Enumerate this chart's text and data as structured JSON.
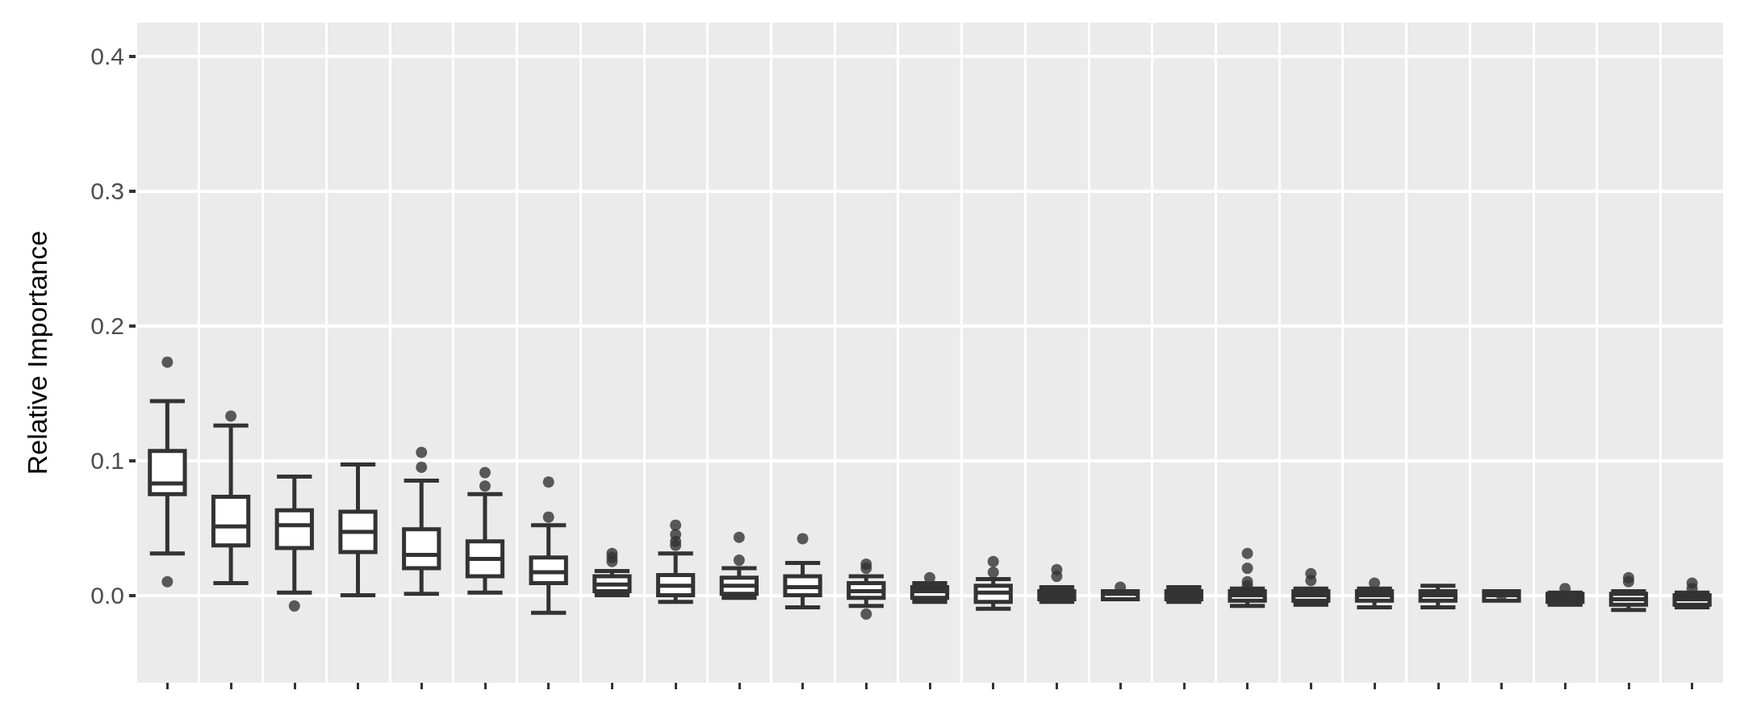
{
  "chart_data": {
    "type": "box",
    "ylabel": "Relative Importance",
    "categories": [
      null,
      null,
      null,
      null,
      null,
      null,
      null,
      null,
      null,
      null,
      null,
      null,
      null,
      null,
      null,
      null,
      null,
      null,
      null,
      null,
      null,
      null,
      null,
      null,
      null
    ],
    "ylim": [
      -0.065,
      0.425
    ],
    "yticks": [
      {
        "value": 0,
        "label": "0.0"
      },
      {
        "value": 0.1,
        "label": "0.1"
      },
      {
        "value": 0.2,
        "label": "0.2"
      },
      {
        "value": 0.3,
        "label": "0.3"
      },
      {
        "value": 0.4,
        "label": "0.4"
      }
    ],
    "grid": true,
    "tick_labels": "y",
    "color": "#333333",
    "boxes": [
      {
        "low": 0.031,
        "q1": 0.075,
        "median": 0.083,
        "q3": 0.107,
        "high": 0.144,
        "outliers": [
          0.173,
          0.01
        ]
      },
      {
        "low": 0.009,
        "q1": 0.037,
        "median": 0.051,
        "q3": 0.073,
        "high": 0.126,
        "outliers": [
          0.133
        ]
      },
      {
        "low": 0.002,
        "q1": 0.035,
        "median": 0.052,
        "q3": 0.063,
        "high": 0.088,
        "outliers": [
          -0.008
        ]
      },
      {
        "low": 0.0,
        "q1": 0.032,
        "median": 0.047,
        "q3": 0.062,
        "high": 0.097
      },
      {
        "low": 0.001,
        "q1": 0.02,
        "median": 0.03,
        "q3": 0.049,
        "high": 0.085,
        "outliers": [
          0.106,
          0.095
        ]
      },
      {
        "low": 0.002,
        "q1": 0.014,
        "median": 0.027,
        "q3": 0.04,
        "high": 0.075,
        "outliers": [
          0.091,
          0.081
        ]
      },
      {
        "low": -0.013,
        "q1": 0.009,
        "median": 0.017,
        "q3": 0.028,
        "high": 0.052,
        "outliers": [
          0.084,
          0.058
        ]
      },
      {
        "low": 0.0,
        "q1": 0.003,
        "median": 0.008,
        "q3": 0.014,
        "high": 0.018,
        "outliers": [
          0.031,
          0.028,
          0.025
        ]
      },
      {
        "low": -0.005,
        "q1": 0.0,
        "median": 0.007,
        "q3": 0.015,
        "high": 0.031,
        "outliers": [
          0.052,
          0.045,
          0.04,
          0.037
        ]
      },
      {
        "low": -0.002,
        "q1": 0.001,
        "median": 0.007,
        "q3": 0.013,
        "high": 0.02,
        "outliers": [
          0.043,
          0.026
        ]
      },
      {
        "low": -0.009,
        "q1": 0.0,
        "median": 0.006,
        "q3": 0.014,
        "high": 0.024,
        "outliers": [
          0.042
        ]
      },
      {
        "low": -0.008,
        "q1": -0.002,
        "median": 0.003,
        "q3": 0.009,
        "high": 0.014,
        "outliers": [
          0.023,
          0.02,
          -0.014
        ]
      },
      {
        "low": -0.005,
        "q1": -0.002,
        "median": 0.003,
        "q3": 0.006,
        "high": 0.009,
        "outliers": [
          0.013
        ]
      },
      {
        "low": -0.01,
        "q1": -0.005,
        "median": 0.002,
        "q3": 0.007,
        "high": 0.012,
        "outliers": [
          0.025,
          0.017
        ]
      },
      {
        "low": -0.005,
        "q1": -0.003,
        "median": 0.0,
        "q3": 0.003,
        "high": 0.006,
        "outliers": [
          0.019,
          0.014
        ]
      },
      {
        "low": -0.003,
        "q1": -0.003,
        "median": 0.001,
        "q3": 0.003,
        "high": 0.003,
        "outliers": [
          0.006
        ]
      },
      {
        "low": -0.005,
        "q1": -0.003,
        "median": 0.0,
        "q3": 0.003,
        "high": 0.006
      },
      {
        "low": -0.008,
        "q1": -0.004,
        "median": 0.0,
        "q3": 0.003,
        "high": 0.005,
        "outliers": [
          0.031,
          0.02,
          0.01,
          0.007
        ]
      },
      {
        "low": -0.007,
        "q1": -0.004,
        "median": 0.0,
        "q3": 0.003,
        "high": 0.005,
        "outliers": [
          0.016,
          0.011
        ]
      },
      {
        "low": -0.009,
        "q1": -0.004,
        "median": 0.0,
        "q3": 0.003,
        "high": 0.005,
        "outliers": [
          0.009
        ]
      },
      {
        "low": -0.009,
        "q1": -0.004,
        "median": 0.0,
        "q3": 0.003,
        "high": 0.007
      },
      {
        "low": -0.004,
        "q1": -0.004,
        "median": 0.0,
        "q3": 0.003,
        "high": 0.003,
        "outliers": [
          0.0
        ]
      },
      {
        "low": -0.007,
        "q1": -0.005,
        "median": -0.002,
        "q3": 0.001,
        "high": 0.002,
        "outliers": [
          0.005
        ]
      },
      {
        "low": -0.011,
        "q1": -0.007,
        "median": -0.003,
        "q3": 0.001,
        "high": 0.003,
        "outliers": [
          0.013,
          0.01
        ]
      },
      {
        "low": -0.009,
        "q1": -0.007,
        "median": -0.003,
        "q3": 0.0,
        "high": 0.002,
        "outliers": [
          0.009,
          0.005
        ]
      }
    ]
  }
}
